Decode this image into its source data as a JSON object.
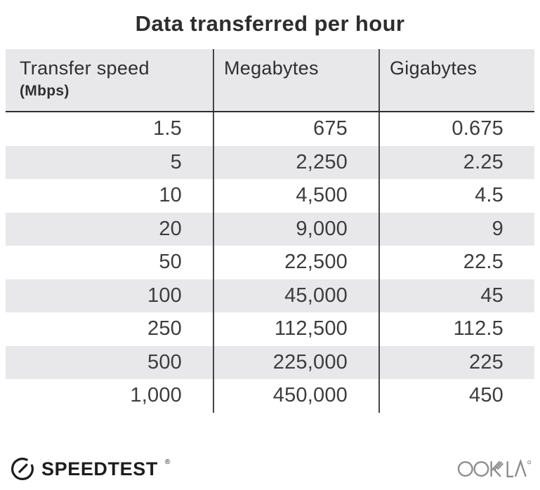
{
  "title": "Data transferred per hour",
  "table": {
    "headers": [
      {
        "label": "Transfer speed",
        "sub": "(Mbps)"
      },
      {
        "label": "Megabytes",
        "sub": ""
      },
      {
        "label": "Gigabytes",
        "sub": ""
      }
    ],
    "rows": [
      [
        "1.5",
        "675",
        "0.675"
      ],
      [
        "5",
        "2,250",
        "2.25"
      ],
      [
        "10",
        "4,500",
        "4.5"
      ],
      [
        "20",
        "9,000",
        "9"
      ],
      [
        "50",
        "22,500",
        "22.5"
      ],
      [
        "100",
        "45,000",
        "45"
      ],
      [
        "250",
        "112,500",
        "112.5"
      ],
      [
        "500",
        "225,000",
        "225"
      ],
      [
        "1,000",
        "450,000",
        "450"
      ]
    ]
  },
  "footer": {
    "speedtest_label": "SPEEDTEST",
    "speedtest_mark": "®",
    "ookla_label": "OOKLA"
  },
  "colors": {
    "stripe": "#e8e7ea",
    "header_bg": "#e8e7ea",
    "divider": "#454545",
    "header_rule": "#2f2f2f",
    "text_dark": "#2d2d2d",
    "number_text": "#3d3d3d",
    "speedtest_black": "#1d1d1d",
    "ookla_gray": "#8c8b8d"
  },
  "chart_data": {
    "type": "table",
    "title": "Data transferred per hour",
    "columns": [
      "Transfer speed (Mbps)",
      "Megabytes",
      "Gigabytes"
    ],
    "rows": [
      [
        1.5,
        675,
        0.675
      ],
      [
        5,
        2250,
        2.25
      ],
      [
        10,
        4500,
        4.5
      ],
      [
        20,
        9000,
        9
      ],
      [
        50,
        22500,
        22.5
      ],
      [
        100,
        45000,
        45
      ],
      [
        250,
        112500,
        112.5
      ],
      [
        500,
        225000,
        225
      ],
      [
        1000,
        450000,
        450
      ]
    ]
  }
}
